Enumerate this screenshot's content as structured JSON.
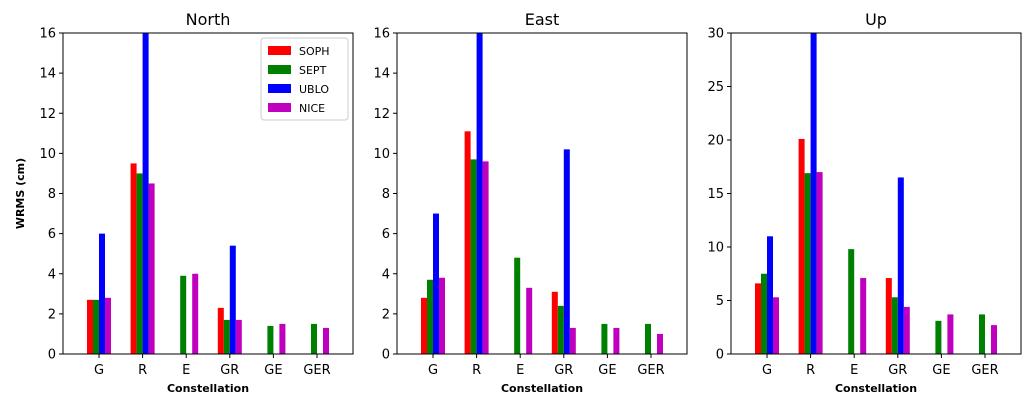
{
  "chart_data": [
    {
      "type": "bar",
      "title": "North",
      "xlabel": "Constellation",
      "ylabel": "WRMS (cm)",
      "ylim": [
        0,
        16
      ],
      "yticks": [
        "0",
        "2",
        "4",
        "6",
        "8",
        "10",
        "12",
        "14",
        "16"
      ],
      "categories": [
        "G",
        "R",
        "E",
        "GR",
        "GE",
        "GER"
      ],
      "legend": "top-right",
      "series": [
        {
          "name": "SOPH",
          "color": "#ff0000",
          "values": [
            2.7,
            9.5,
            null,
            2.3,
            null,
            null
          ]
        },
        {
          "name": "SEPT",
          "color": "#008000",
          "values": [
            2.7,
            9.0,
            3.9,
            1.7,
            1.4,
            1.5
          ]
        },
        {
          "name": "UBLO",
          "color": "#0000ff",
          "values": [
            6.0,
            16.0,
            null,
            5.4,
            null,
            null
          ]
        },
        {
          "name": "NICE",
          "color": "#bf00bf",
          "values": [
            2.8,
            8.5,
            4.0,
            1.7,
            1.5,
            1.3
          ]
        }
      ]
    },
    {
      "type": "bar",
      "title": "East",
      "xlabel": "Constellation",
      "ylabel": "",
      "ylim": [
        0,
        16
      ],
      "yticks": [
        "0",
        "2",
        "4",
        "6",
        "8",
        "10",
        "12",
        "14",
        "16"
      ],
      "categories": [
        "G",
        "R",
        "E",
        "GR",
        "GE",
        "GER"
      ],
      "series": [
        {
          "name": "SOPH",
          "color": "#ff0000",
          "values": [
            2.8,
            11.1,
            null,
            3.1,
            null,
            null
          ]
        },
        {
          "name": "SEPT",
          "color": "#008000",
          "values": [
            3.7,
            9.7,
            4.8,
            2.4,
            1.5,
            1.5
          ]
        },
        {
          "name": "UBLO",
          "color": "#0000ff",
          "values": [
            7.0,
            16.0,
            null,
            10.2,
            null,
            null
          ]
        },
        {
          "name": "NICE",
          "color": "#bf00bf",
          "values": [
            3.8,
            9.6,
            3.3,
            1.3,
            1.3,
            1.0
          ]
        }
      ]
    },
    {
      "type": "bar",
      "title": "Up",
      "xlabel": "Constellation",
      "ylabel": "",
      "ylim": [
        0,
        30
      ],
      "yticks": [
        "0",
        "5",
        "10",
        "15",
        "20",
        "25",
        "30"
      ],
      "categories": [
        "G",
        "R",
        "E",
        "GR",
        "GE",
        "GER"
      ],
      "series": [
        {
          "name": "SOPH",
          "color": "#ff0000",
          "values": [
            6.6,
            20.1,
            null,
            7.1,
            null,
            null
          ]
        },
        {
          "name": "SEPT",
          "color": "#008000",
          "values": [
            7.5,
            16.9,
            9.8,
            5.3,
            3.1,
            3.7
          ]
        },
        {
          "name": "UBLO",
          "color": "#0000ff",
          "values": [
            11.0,
            30.0,
            null,
            16.5,
            null,
            null
          ]
        },
        {
          "name": "NICE",
          "color": "#bf00bf",
          "values": [
            5.3,
            17.0,
            7.1,
            4.4,
            3.7,
            2.7
          ]
        }
      ]
    }
  ]
}
